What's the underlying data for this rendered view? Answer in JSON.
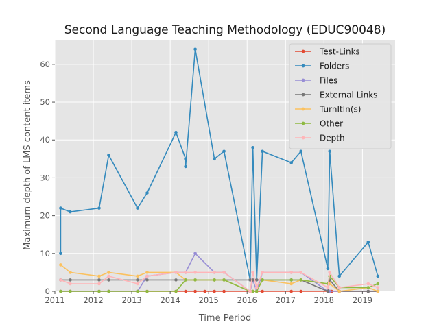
{
  "chart_data": {
    "type": "line",
    "title": "Second Language Teaching Methodology (EDUC90048)",
    "xlabel": "Time Period",
    "ylabel": "Maximum depth of LMS content items",
    "xlim": [
      2011.0,
      2019.85
    ],
    "ylim": [
      0,
      66.5
    ],
    "xticks": [
      2011,
      2012,
      2013,
      2014,
      2015,
      2016,
      2017,
      2018,
      2019
    ],
    "xtick_labels": [
      "2011",
      "2012",
      "2013",
      "2014",
      "2015",
      "2016",
      "2017",
      "2018",
      "2019"
    ],
    "yticks": [
      0,
      10,
      20,
      30,
      40,
      50,
      60
    ],
    "ytick_labels": [
      "0",
      "10",
      "20",
      "30",
      "40",
      "50",
      "60"
    ],
    "grid": true,
    "legend_position": "top-right",
    "series": [
      {
        "name": "Test-Links",
        "color": "#e24a33",
        "points": [
          [
            2011.15,
            0
          ],
          [
            2011.4,
            0
          ],
          [
            2012.15,
            0
          ],
          [
            2012.4,
            0
          ],
          [
            2013.15,
            0
          ],
          [
            2013.4,
            0
          ],
          [
            2014.15,
            0
          ],
          [
            2014.4,
            0
          ],
          [
            2014.65,
            0
          ],
          [
            2014.9,
            0
          ],
          [
            2015.15,
            0
          ],
          [
            2015.4,
            0
          ],
          [
            2016.08,
            0
          ],
          [
            2016.15,
            0
          ],
          [
            2016.25,
            0
          ],
          [
            2016.4,
            0
          ],
          [
            2017.15,
            0
          ],
          [
            2017.4,
            0
          ],
          [
            2018.1,
            0
          ],
          [
            2018.15,
            0
          ],
          [
            2018.2,
            0
          ],
          [
            2018.4,
            0
          ],
          [
            2019.15,
            0
          ],
          [
            2019.4,
            0
          ]
        ]
      },
      {
        "name": "Folders",
        "color": "#348abd",
        "points": [
          [
            2011.15,
            10
          ],
          [
            2011.15,
            22
          ],
          [
            2011.4,
            21
          ],
          [
            2012.15,
            22
          ],
          [
            2012.4,
            36
          ],
          [
            2013.15,
            22
          ],
          [
            2013.4,
            26
          ],
          [
            2014.15,
            42
          ],
          [
            2014.4,
            35
          ],
          [
            2014.4,
            33
          ],
          [
            2014.65,
            64
          ],
          [
            2015.15,
            35
          ],
          [
            2015.4,
            37
          ],
          [
            2016.08,
            3
          ],
          [
            2016.15,
            38
          ],
          [
            2016.25,
            3
          ],
          [
            2016.4,
            37
          ],
          [
            2017.15,
            34
          ],
          [
            2017.4,
            37
          ],
          [
            2018.1,
            6
          ],
          [
            2018.15,
            37
          ],
          [
            2018.4,
            4
          ],
          [
            2019.15,
            13
          ],
          [
            2019.4,
            4
          ]
        ]
      },
      {
        "name": "Files",
        "color": "#988ed5",
        "points": [
          [
            2011.15,
            0
          ],
          [
            2011.4,
            0
          ],
          [
            2012.15,
            0
          ],
          [
            2012.4,
            0
          ],
          [
            2013.15,
            0
          ],
          [
            2013.4,
            4
          ],
          [
            2014.15,
            5
          ],
          [
            2014.4,
            5
          ],
          [
            2014.65,
            10
          ],
          [
            2015.15,
            5
          ],
          [
            2015.4,
            5
          ],
          [
            2016.08,
            0
          ],
          [
            2016.15,
            3
          ],
          [
            2016.25,
            0
          ],
          [
            2016.4,
            5
          ],
          [
            2017.15,
            5
          ],
          [
            2017.4,
            5
          ],
          [
            2018.1,
            0
          ],
          [
            2018.15,
            0
          ],
          [
            2018.4,
            0
          ],
          [
            2019.15,
            0
          ],
          [
            2019.4,
            0
          ]
        ]
      },
      {
        "name": "External Links",
        "color": "#777777",
        "points": [
          [
            2011.15,
            3
          ],
          [
            2011.4,
            3
          ],
          [
            2012.15,
            3
          ],
          [
            2012.4,
            3
          ],
          [
            2013.15,
            3
          ],
          [
            2013.4,
            3
          ],
          [
            2014.15,
            3
          ],
          [
            2014.4,
            3
          ],
          [
            2014.65,
            3
          ],
          [
            2015.15,
            3
          ],
          [
            2015.4,
            3
          ],
          [
            2016.08,
            3
          ],
          [
            2016.15,
            3
          ],
          [
            2016.25,
            3
          ],
          [
            2016.4,
            3
          ],
          [
            2017.15,
            3
          ],
          [
            2017.4,
            3
          ],
          [
            2018.1,
            0
          ],
          [
            2018.15,
            3
          ],
          [
            2018.4,
            0
          ],
          [
            2019.15,
            0
          ],
          [
            2019.4,
            0
          ]
        ]
      },
      {
        "name": "TurnItIn(s)",
        "color": "#fbc15e",
        "points": [
          [
            2011.15,
            7
          ],
          [
            2011.4,
            5
          ],
          [
            2012.15,
            4
          ],
          [
            2012.4,
            5
          ],
          [
            2013.15,
            4
          ],
          [
            2013.4,
            5
          ],
          [
            2014.15,
            5
          ],
          [
            2014.4,
            3
          ],
          [
            2014.65,
            3
          ],
          [
            2015.15,
            3
          ],
          [
            2015.4,
            3
          ],
          [
            2016.08,
            0
          ],
          [
            2016.15,
            0
          ],
          [
            2016.25,
            0
          ],
          [
            2016.4,
            3
          ],
          [
            2017.15,
            2
          ],
          [
            2017.4,
            3
          ],
          [
            2018.1,
            2
          ],
          [
            2018.15,
            2
          ],
          [
            2018.4,
            0
          ],
          [
            2019.15,
            1
          ],
          [
            2019.4,
            0
          ]
        ]
      },
      {
        "name": "Other",
        "color": "#8eba42",
        "points": [
          [
            2011.15,
            0
          ],
          [
            2011.4,
            0
          ],
          [
            2012.15,
            0
          ],
          [
            2012.4,
            0
          ],
          [
            2013.15,
            0
          ],
          [
            2013.4,
            0
          ],
          [
            2014.15,
            0
          ],
          [
            2014.4,
            3
          ],
          [
            2014.65,
            3
          ],
          [
            2015.15,
            3
          ],
          [
            2015.4,
            3
          ],
          [
            2016.08,
            0
          ],
          [
            2016.15,
            0
          ],
          [
            2016.25,
            0
          ],
          [
            2016.4,
            3
          ],
          [
            2017.15,
            3
          ],
          [
            2017.4,
            3
          ],
          [
            2018.1,
            2
          ],
          [
            2018.15,
            4
          ],
          [
            2018.4,
            1
          ],
          [
            2019.15,
            1
          ],
          [
            2019.4,
            2
          ]
        ]
      },
      {
        "name": "Depth",
        "color": "#ffb5b8",
        "points": [
          [
            2011.15,
            3
          ],
          [
            2011.4,
            2
          ],
          [
            2012.15,
            2
          ],
          [
            2012.4,
            4
          ],
          [
            2013.15,
            2
          ],
          [
            2013.4,
            4
          ],
          [
            2014.15,
            5
          ],
          [
            2014.4,
            5
          ],
          [
            2014.65,
            5
          ],
          [
            2015.15,
            5
          ],
          [
            2015.4,
            5
          ],
          [
            2016.08,
            0
          ],
          [
            2016.15,
            5
          ],
          [
            2016.25,
            1
          ],
          [
            2016.4,
            5
          ],
          [
            2017.15,
            5
          ],
          [
            2017.4,
            5
          ],
          [
            2018.1,
            1
          ],
          [
            2018.15,
            5
          ],
          [
            2018.4,
            1
          ],
          [
            2019.15,
            2
          ],
          [
            2019.4,
            1
          ]
        ]
      }
    ]
  }
}
